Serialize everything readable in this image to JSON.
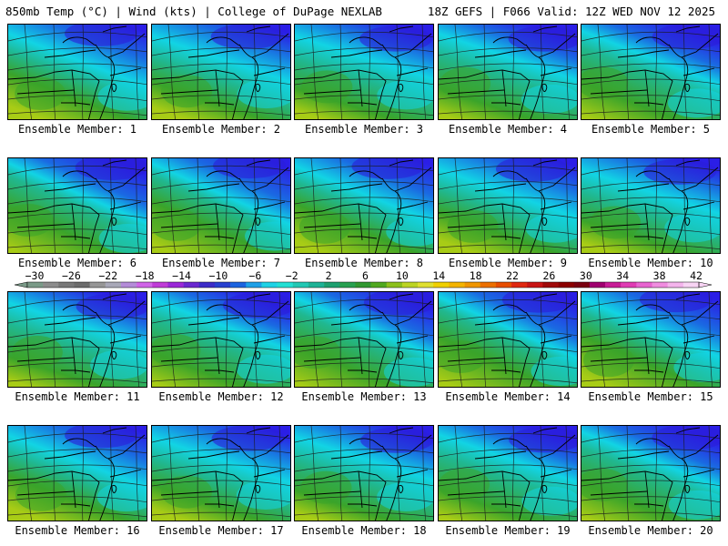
{
  "header": {
    "left": "850mb Temp (°C) | Wind (kts) | College of DuPage NEXLAB",
    "right": "18Z GEFS | F066 Valid: 12Z WED NOV 12 2025"
  },
  "panels": [
    {
      "label": "Ensemble Member: 1"
    },
    {
      "label": "Ensemble Member: 2"
    },
    {
      "label": "Ensemble Member: 3"
    },
    {
      "label": "Ensemble Member: 4"
    },
    {
      "label": "Ensemble Member: 5"
    },
    {
      "label": "Ensemble Member: 6"
    },
    {
      "label": "Ensemble Member: 7"
    },
    {
      "label": "Ensemble Member: 8"
    },
    {
      "label": "Ensemble Member: 9"
    },
    {
      "label": "Ensemble Member: 10"
    },
    {
      "label": "Ensemble Member: 11"
    },
    {
      "label": "Ensemble Member: 12"
    },
    {
      "label": "Ensemble Member: 13"
    },
    {
      "label": "Ensemble Member: 14"
    },
    {
      "label": "Ensemble Member: 15"
    },
    {
      "label": "Ensemble Member: 16"
    },
    {
      "label": "Ensemble Member: 17"
    },
    {
      "label": "Ensemble Member: 18"
    },
    {
      "label": "Ensemble Member: 19"
    },
    {
      "label": "Ensemble Member: 20"
    }
  ],
  "colorbar": {
    "labels": [
      "−30",
      "−26",
      "−22",
      "−18",
      "−14",
      "−10",
      "−6",
      "−2",
      "2",
      "6",
      "10",
      "14",
      "18",
      "22",
      "26",
      "30",
      "34",
      "38",
      "42"
    ],
    "colors": [
      "#7a9a88",
      "#8c8c8c",
      "#787878",
      "#6c6c6c",
      "#969696",
      "#a8a8b8",
      "#b48cd8",
      "#d064e8",
      "#c03cd8",
      "#9a28d8",
      "#6a28d0",
      "#3c2cc8",
      "#2840d0",
      "#1c64e0",
      "#1ea0e8",
      "#1ed2e6",
      "#22e0d4",
      "#22c8b4",
      "#1eb296",
      "#1ea070",
      "#28a050",
      "#309830",
      "#50a820",
      "#8cc01c",
      "#bcd424",
      "#e0e030",
      "#f0d000",
      "#f4b400",
      "#f09600",
      "#ec7000",
      "#e84e00",
      "#e02810",
      "#c81414",
      "#a00a0a",
      "#8c0000",
      "#7a0010",
      "#a00070",
      "#c81c96",
      "#e03cb4",
      "#e864d0",
      "#f08ce0",
      "#f4b4ec",
      "#f8d4f4"
    ]
  },
  "colors": {
    "cold": "#2b1ee6",
    "mid": "#12d4e4",
    "warm": "#3aa42a",
    "hot": "#a8cc16"
  }
}
